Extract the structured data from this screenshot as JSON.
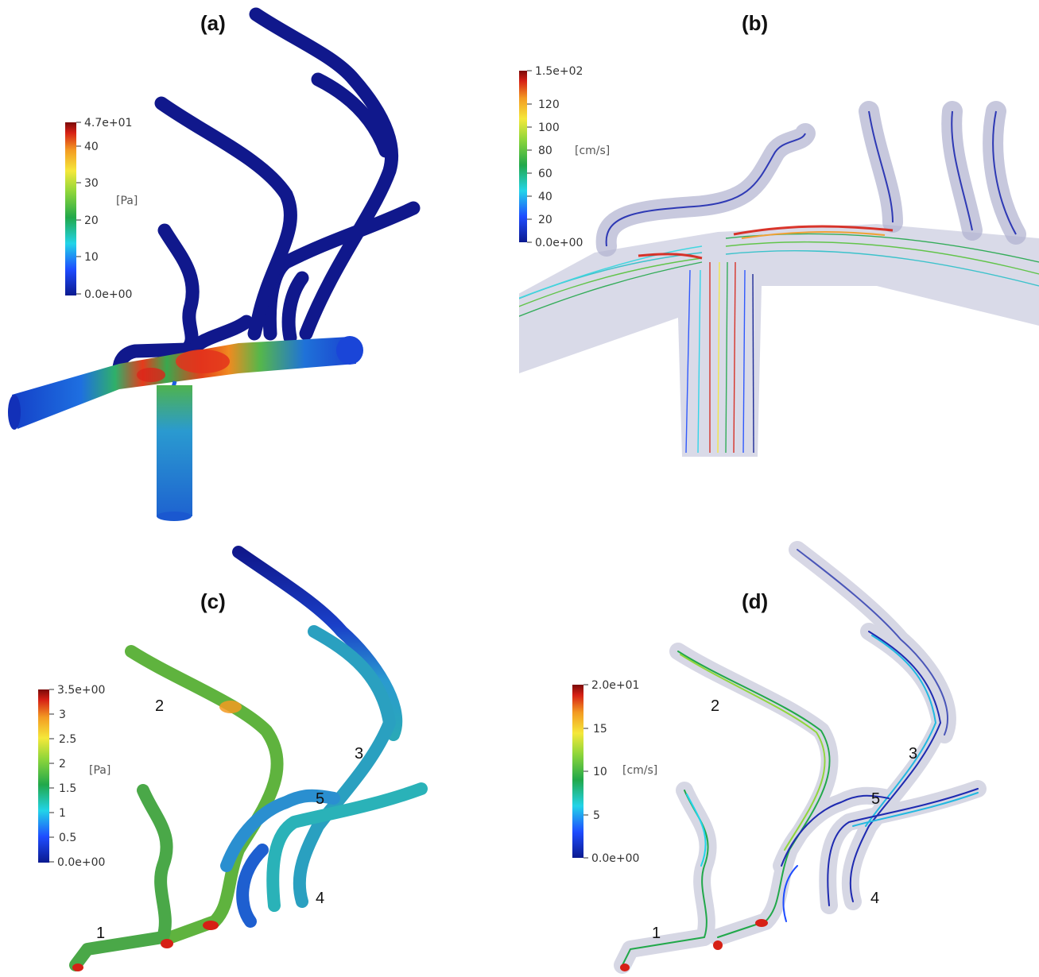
{
  "panels": {
    "a": {
      "label": "(a)",
      "colorbar": {
        "max": "4.7e+01",
        "ticks": [
          "40",
          "30",
          "20",
          "10"
        ],
        "min": "0.0e+00",
        "unit": "[Pa]"
      }
    },
    "b": {
      "label": "(b)",
      "colorbar": {
        "max": "1.5e+02",
        "ticks": [
          "120",
          "100",
          "80",
          "60",
          "40",
          "20"
        ],
        "min": "0.0e+00",
        "unit": "[cm/s]"
      }
    },
    "c": {
      "label": "(c)",
      "colorbar": {
        "max": "3.5e+00",
        "ticks": [
          "3",
          "2.5",
          "2",
          "1.5",
          "1",
          "0.5"
        ],
        "min": "0.0e+00",
        "unit": "[Pa]"
      },
      "branches": [
        "1",
        "2",
        "3",
        "4",
        "5"
      ]
    },
    "d": {
      "label": "(d)",
      "colorbar": {
        "max": "2.0e+01",
        "ticks": [
          "15",
          "10",
          "5"
        ],
        "min": "0.0e+00",
        "unit": "[cm/s]"
      },
      "branches": [
        "1",
        "2",
        "3",
        "4",
        "5"
      ]
    }
  },
  "colors": {
    "colormap": [
      "#0b1a8f",
      "#1e4cff",
      "#22d4e8",
      "#21a84a",
      "#8fd63a",
      "#f5e83a",
      "#f39a22",
      "#d62015",
      "#7a0a08"
    ],
    "vessel_dark": "#10188c",
    "vessel_mid": "#1f5fd0",
    "glass": "#b9bbd6"
  }
}
